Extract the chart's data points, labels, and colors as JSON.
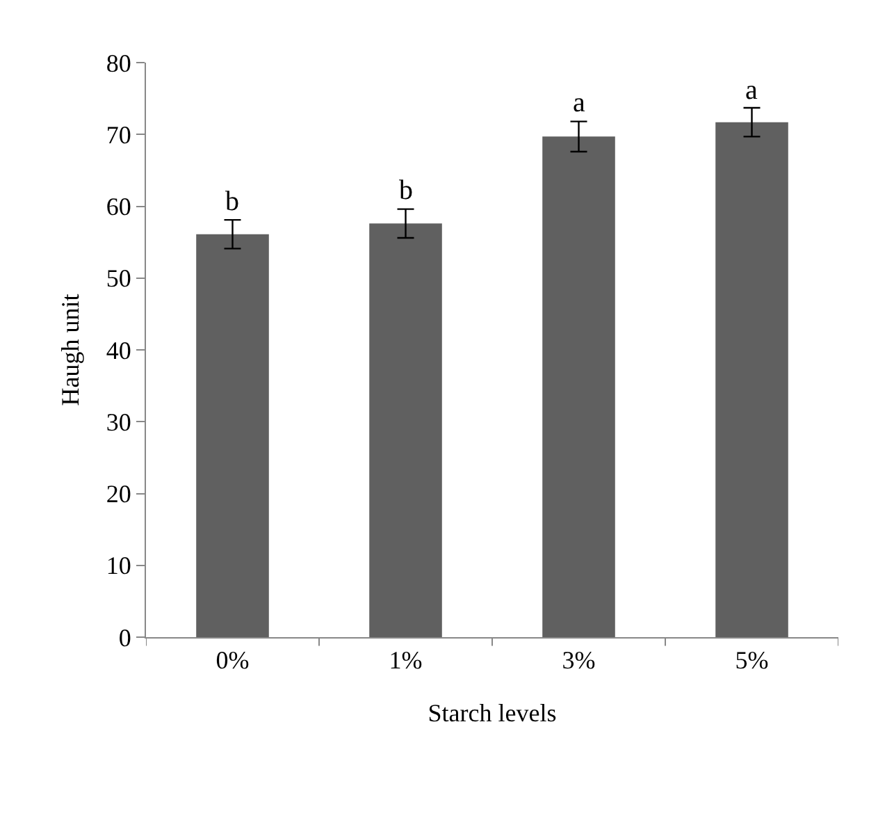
{
  "chart_data": {
    "type": "bar",
    "xlabel": "Starch levels",
    "ylabel": "Haugh unit",
    "categories": [
      "0%",
      "1%",
      "3%",
      "5%"
    ],
    "values": [
      56.1,
      57.6,
      69.7,
      71.7
    ],
    "errors": [
      2.0,
      2.0,
      2.1,
      2.0
    ],
    "color": "#606060",
    "ylim": [
      0,
      80
    ],
    "yticks": [
      0,
      10,
      20,
      30,
      40,
      50,
      60,
      70,
      80
    ],
    "annotations": [
      {
        "text": "b",
        "x": "0%",
        "y": 58.1
      },
      {
        "text": "b",
        "x": "1%",
        "y": 59.6
      },
      {
        "text": "a",
        "x": "3%",
        "y": 71.8
      },
      {
        "text": "a",
        "x": "5%",
        "y": 73.7
      }
    ]
  }
}
